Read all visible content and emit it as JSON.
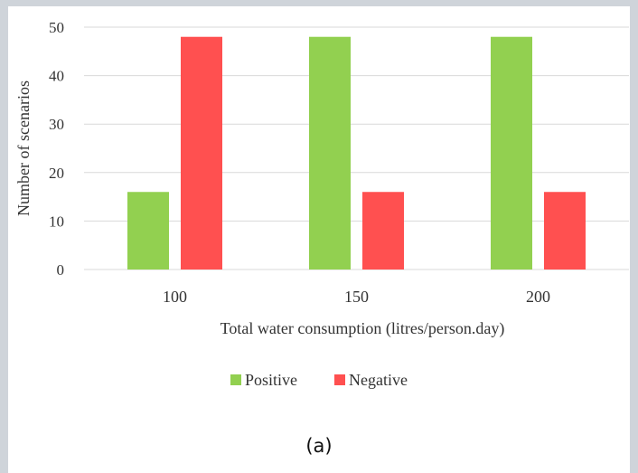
{
  "figure": {
    "caption": "(a)"
  },
  "colors": {
    "positive": "#92d050",
    "negative": "#ff5050",
    "grid": "#d9d9d9",
    "text": "#333333"
  },
  "chart_data": {
    "type": "bar",
    "categories": [
      "100",
      "150",
      "200"
    ],
    "series": [
      {
        "name": "Positive",
        "values": [
          16,
          48,
          48
        ]
      },
      {
        "name": "Negative",
        "values": [
          48,
          16,
          16
        ]
      }
    ],
    "xlabel": "Total water consumption (litres/person.day)",
    "ylabel": "Number of scenarios",
    "ylim": [
      0,
      50
    ],
    "yticks": [
      "0",
      "10",
      "20",
      "30",
      "40",
      "50"
    ],
    "grid": true,
    "legend": "bottom-center"
  }
}
